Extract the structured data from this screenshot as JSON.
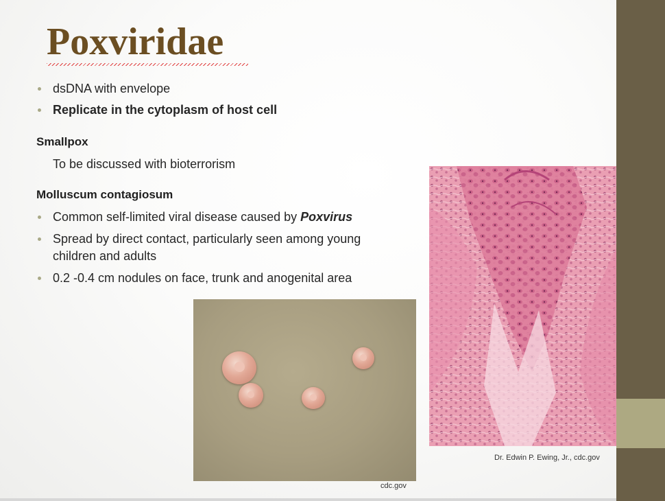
{
  "slide": {
    "title": "Poxviridae",
    "bullets_top": [
      "dsDNA with envelope",
      "Replicate in the cytoplasm of host cell"
    ],
    "smallpox": {
      "heading": "Smallpox",
      "text": "To be discussed with bioterrorism"
    },
    "molluscum": {
      "heading": "Molluscum contagiosum",
      "bullet1_prefix": "Common self-limited viral disease caused by ",
      "bullet1_emph": "Poxvirus",
      "bullet2_line1": "Spread by direct contact, particularly seen among young",
      "bullet2_line2": "children and adults",
      "bullet3": "0.2 -0.4 cm nodules on face, trunk and anogenital area"
    },
    "captions": {
      "skin_photo": "cdc.gov",
      "histology_photo": "Dr. Edwin P. Ewing, Jr., cdc.gov"
    }
  },
  "colors": {
    "title": "#6b4e22",
    "sidebar": "#6a5f47",
    "sidebar_accent": "#ada982",
    "bullet": "#a9a987"
  }
}
